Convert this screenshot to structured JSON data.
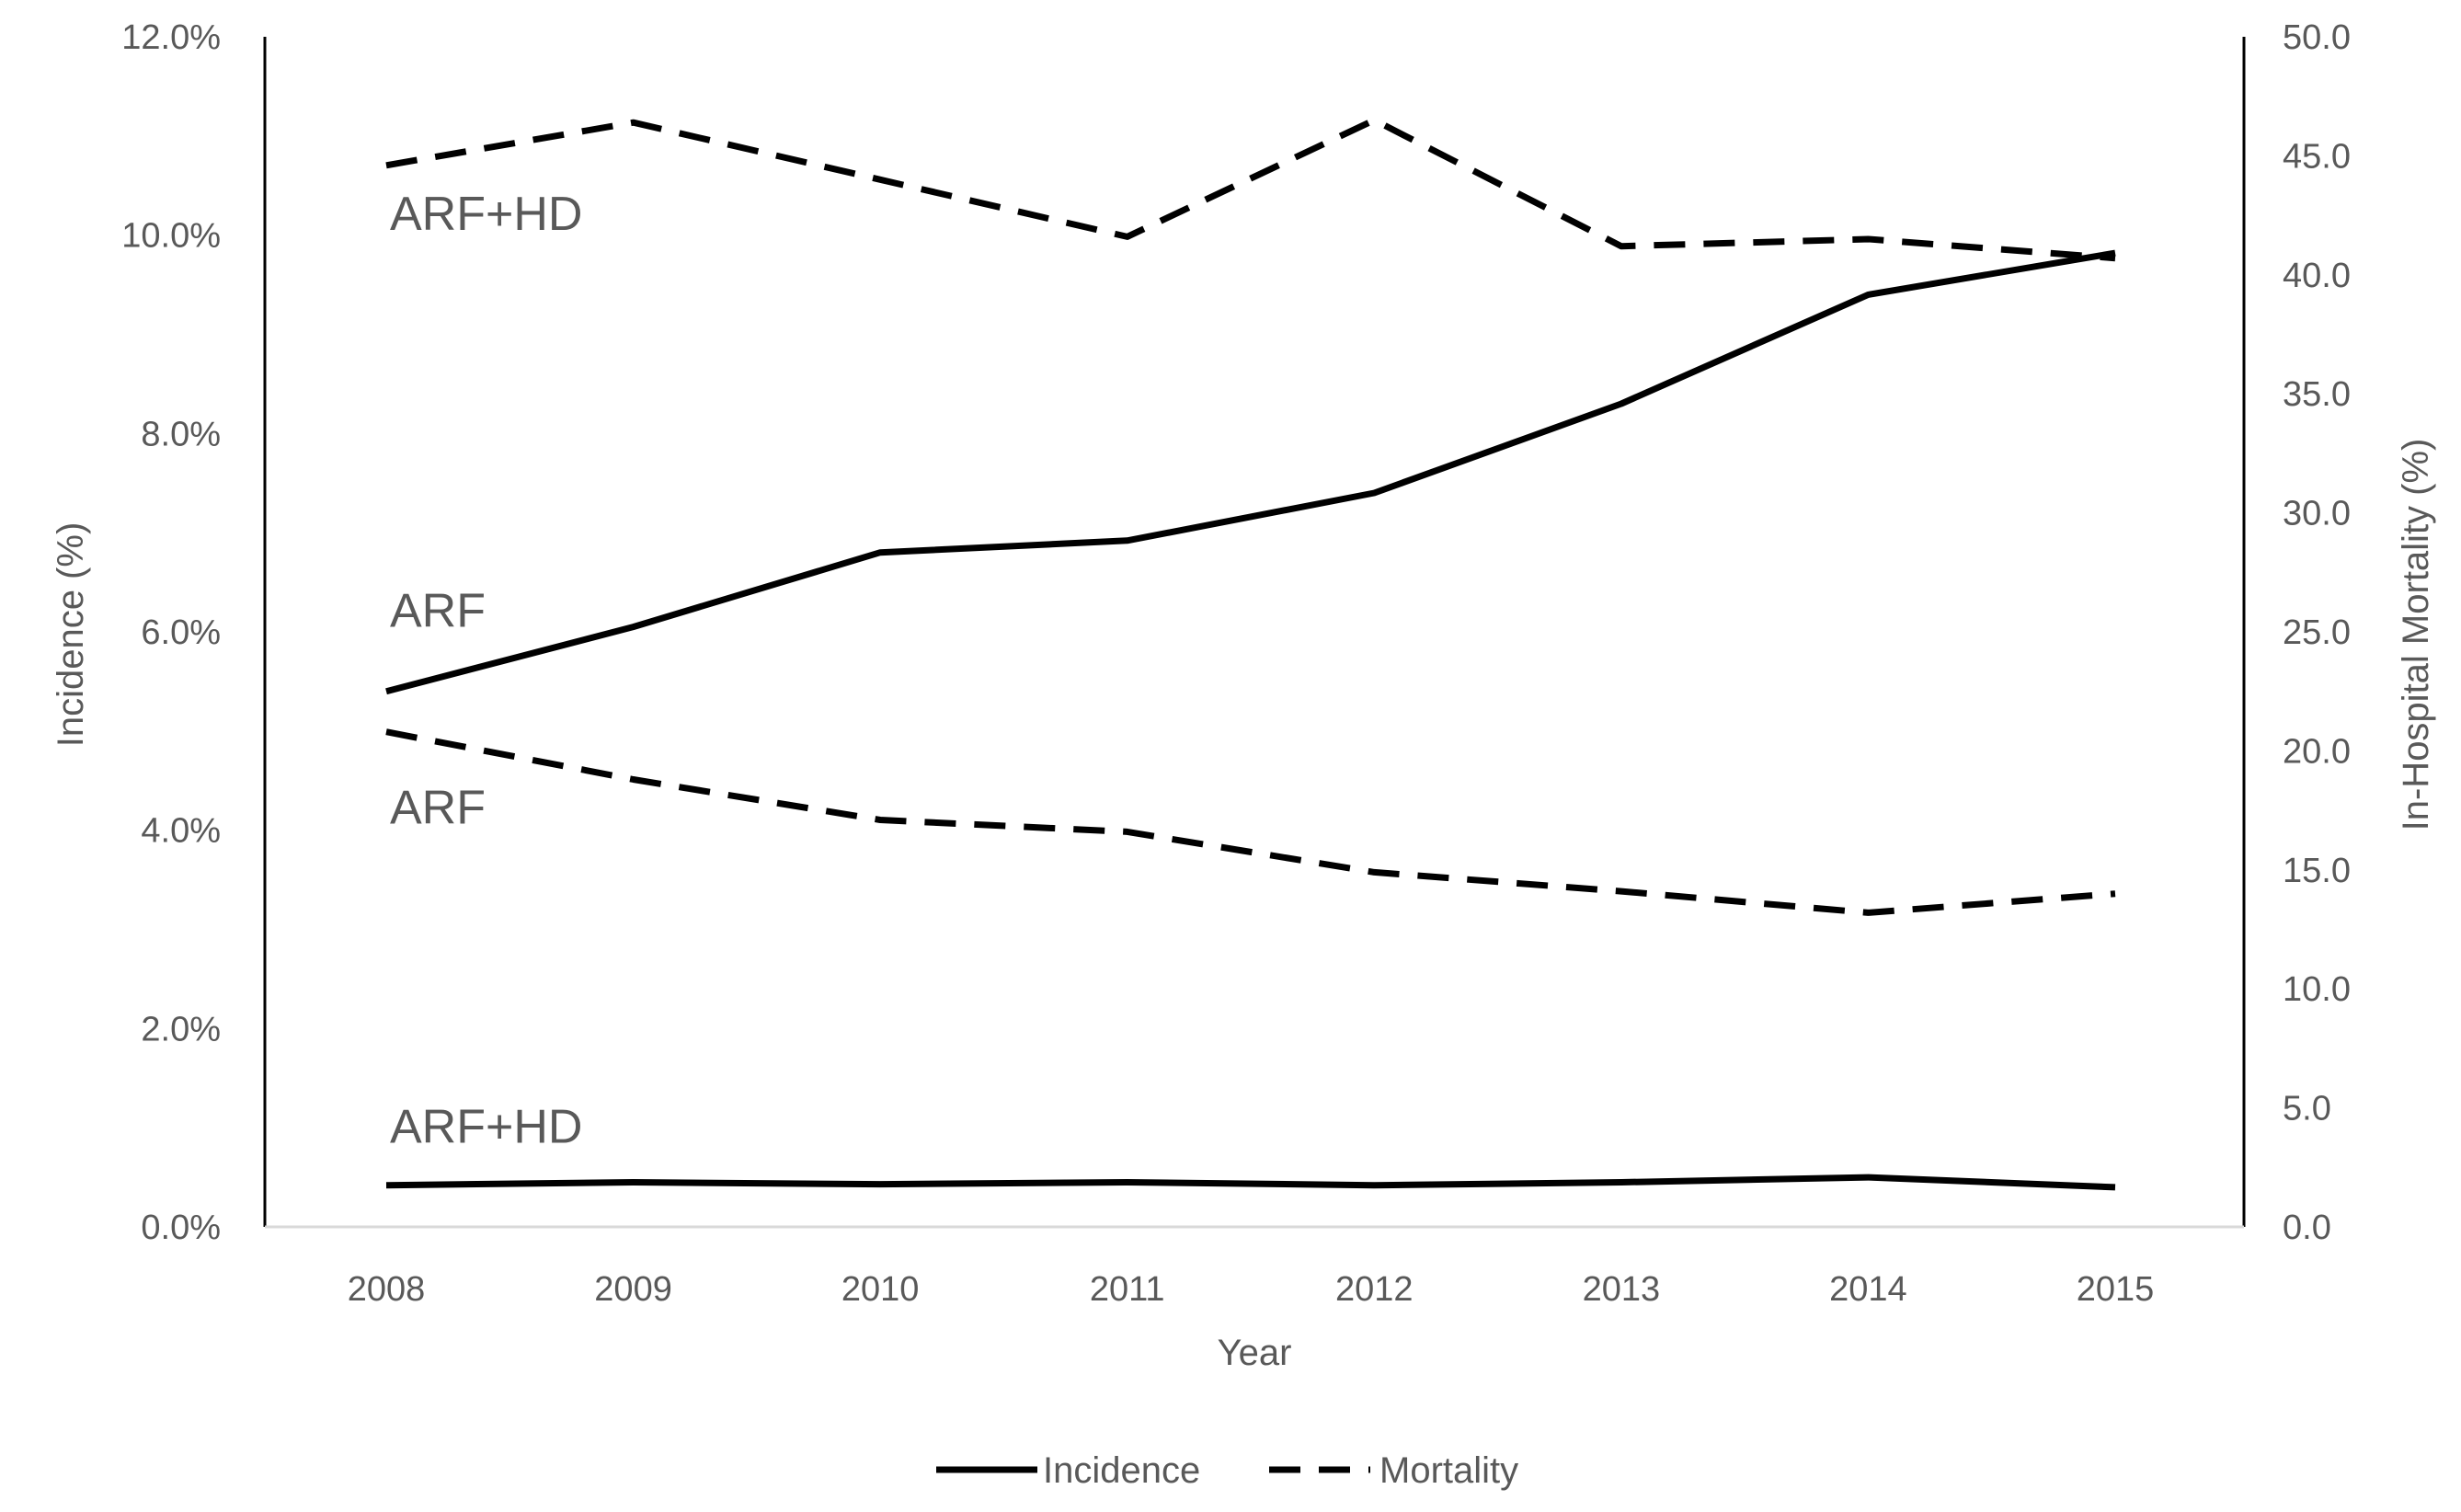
{
  "chart_data": {
    "type": "line",
    "title": "",
    "categories": [
      "2008",
      "2009",
      "2010",
      "2011",
      "2012",
      "2013",
      "2014",
      "2015"
    ],
    "xlabel": "Year",
    "ylabel_left": "Incidence (%)",
    "ylabel_right": "In-Hospital Mortality (%)",
    "left_axis": {
      "ylim": [
        0,
        12
      ],
      "ticks": [
        "0.0%",
        "2.0%",
        "4.0%",
        "6.0%",
        "8.0%",
        "10.0%",
        "12.0%"
      ]
    },
    "right_axis": {
      "ylim": [
        0,
        50
      ],
      "ticks": [
        "0.0",
        "5.0",
        "10.0",
        "15.0",
        "20.0",
        "25.0",
        "30.0",
        "35.0",
        "40.0",
        "45.0",
        "50.0"
      ]
    },
    "grid": false,
    "legend_position": "bottom",
    "legend": [
      {
        "label": "Incidence",
        "style": "solid"
      },
      {
        "label": "Mortality",
        "style": "dashed"
      }
    ],
    "series": [
      {
        "name": "Incidence",
        "label": "ARF",
        "axis": "left",
        "style": "solid",
        "values": [
          5.4,
          6.05,
          6.8,
          6.92,
          7.4,
          8.3,
          9.4,
          9.82
        ]
      },
      {
        "name": "Incidence",
        "label": "ARF+HD",
        "axis": "left",
        "style": "solid",
        "values": [
          0.42,
          0.45,
          0.43,
          0.45,
          0.42,
          0.45,
          0.5,
          0.4
        ]
      },
      {
        "name": "Mortality",
        "label": "ARF+HD",
        "axis": "right",
        "style": "dashed",
        "values": [
          44.6,
          46.4,
          44.0,
          41.6,
          46.5,
          41.2,
          41.5,
          40.7
        ]
      },
      {
        "name": "Mortality",
        "label": "ARF",
        "axis": "right",
        "style": "dashed",
        "values": [
          20.8,
          18.8,
          17.1,
          16.6,
          14.9,
          14.1,
          13.2,
          14.0
        ]
      }
    ],
    "colors": {
      "line": "#000000",
      "text": "#595959",
      "axis": "#000000"
    }
  }
}
